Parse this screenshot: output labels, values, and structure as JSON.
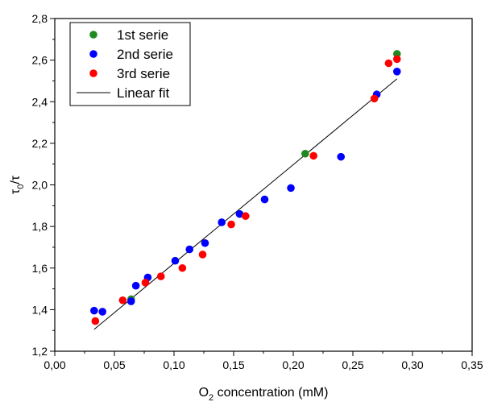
{
  "chart_data": {
    "type": "scatter",
    "xlabel_main": "O",
    "xlabel_sub": "2",
    "xlabel_rest": " concentration (mM)",
    "ylabel_main": "τ",
    "ylabel_sub": "0",
    "ylabel_rest": "/τ",
    "xlim": [
      0.0,
      0.35
    ],
    "ylim": [
      1.2,
      2.8
    ],
    "xticks": [
      "0,00",
      "0,05",
      "0,10",
      "0,15",
      "0,20",
      "0,25",
      "0,30",
      "0,35"
    ],
    "yticks": [
      "1,2",
      "1,4",
      "1,6",
      "1,8",
      "2,0",
      "2,2",
      "2,4",
      "2,6",
      "2,8"
    ],
    "legend_position": "top-left",
    "series": [
      {
        "name": "1st serie",
        "color": "#1f8a1f",
        "points": [
          [
            0.064,
            1.45
          ],
          [
            0.21,
            2.15
          ],
          [
            0.287,
            2.63
          ]
        ]
      },
      {
        "name": "2nd serie",
        "color": "#0000ff",
        "points": [
          [
            0.033,
            1.395
          ],
          [
            0.04,
            1.39
          ],
          [
            0.064,
            1.44
          ],
          [
            0.068,
            1.515
          ],
          [
            0.078,
            1.555
          ],
          [
            0.101,
            1.635
          ],
          [
            0.113,
            1.69
          ],
          [
            0.126,
            1.72
          ],
          [
            0.14,
            1.82
          ],
          [
            0.155,
            1.86
          ],
          [
            0.176,
            1.93
          ],
          [
            0.198,
            1.985
          ],
          [
            0.24,
            2.135
          ],
          [
            0.27,
            2.435
          ],
          [
            0.287,
            2.545
          ]
        ]
      },
      {
        "name": "3rd serie",
        "color": "#ff0000",
        "points": [
          [
            0.034,
            1.345
          ],
          [
            0.057,
            1.445
          ],
          [
            0.076,
            1.53
          ],
          [
            0.089,
            1.56
          ],
          [
            0.107,
            1.6
          ],
          [
            0.124,
            1.665
          ],
          [
            0.148,
            1.81
          ],
          [
            0.16,
            1.85
          ],
          [
            0.217,
            2.14
          ],
          [
            0.268,
            2.415
          ],
          [
            0.28,
            2.585
          ],
          [
            0.287,
            2.605
          ]
        ]
      }
    ],
    "fit": {
      "name": "Linear fit",
      "color": "#000000",
      "x": [
        0.033,
        0.287
      ],
      "y": [
        1.305,
        2.51
      ]
    }
  }
}
